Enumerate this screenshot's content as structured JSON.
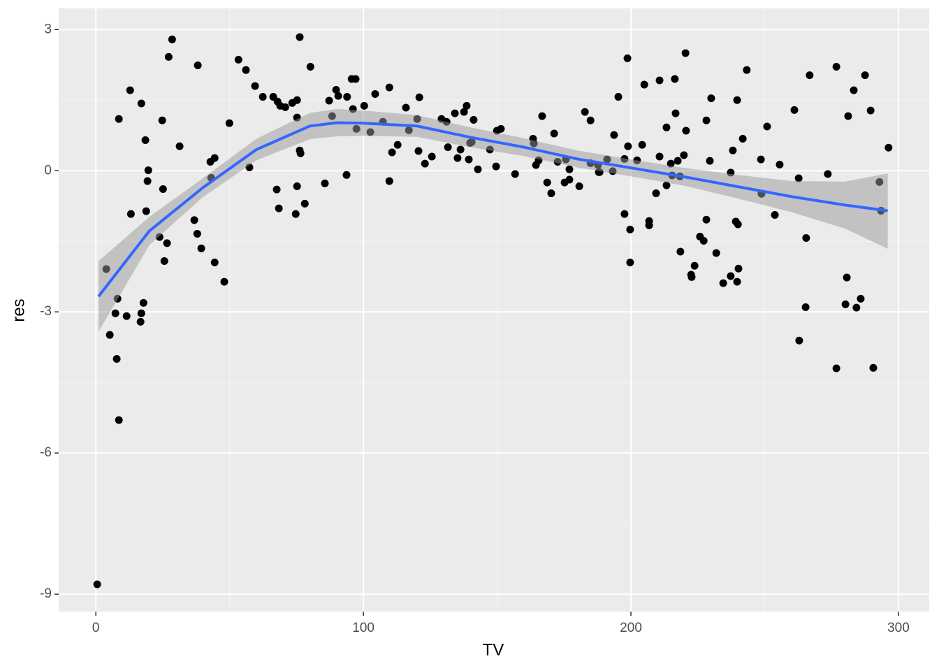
{
  "chart_data": {
    "type": "scatter",
    "x_label": "TV",
    "y_label": "res",
    "xlim": [
      -13.9,
      311.5
    ],
    "ylim": [
      -9.37,
      3.45
    ],
    "xticks": [
      0,
      100,
      200,
      300
    ],
    "yticks": [
      3,
      0,
      -3,
      -6,
      -9
    ],
    "xminor": [
      50,
      150,
      250
    ],
    "yminor": [
      1.5,
      -1.5,
      -4.5,
      -7.5
    ],
    "grid": true,
    "color": "#000000",
    "x": [
      0.5,
      3.9,
      5.2,
      7.3,
      7.8,
      8.1,
      8.6,
      8.6,
      11.5,
      12.8,
      13.1,
      16.7,
      17.0,
      17.0,
      17.8,
      18.5,
      18.8,
      19.3,
      19.6,
      23.8,
      24.8,
      25.1,
      25.6,
      26.6,
      27.2,
      28.5,
      31.3,
      36.8,
      37.9,
      38.1,
      39.4,
      42.8,
      43.1,
      44.4,
      44.4,
      48.0,
      49.9,
      53.3,
      56.1,
      57.4,
      59.5,
      62.4,
      66.3,
      67.6,
      67.9,
      68.4,
      68.9,
      70.8,
      73.4,
      74.7,
      75.2,
      75.2,
      75.2,
      76.2,
      76.2,
      76.5,
      78.1,
      80.2,
      85.6,
      87.2,
      88.3,
      89.8,
      90.6,
      93.7,
      93.9,
      95.6,
      96.1,
      97.1,
      97.4,
      100.3,
      102.6,
      104.4,
      107.3,
      109.7,
      109.7,
      110.7,
      112.8,
      115.9,
      117.0,
      120.1,
      120.6,
      120.9,
      123.0,
      125.6,
      129.2,
      131.1,
      131.6,
      134.2,
      135.2,
      136.3,
      137.6,
      138.6,
      139.4,
      139.9,
      140.5,
      141.2,
      142.8,
      147.3,
      149.6,
      149.9,
      151.4,
      156.7,
      163.4,
      163.7,
      164.5,
      165.5,
      166.8,
      168.7,
      170.2,
      171.3,
      172.6,
      175.2,
      175.7,
      177.0,
      177.0,
      180.7,
      182.8,
      184.9,
      184.9,
      187.7,
      188.0,
      188.3,
      191.1,
      193.2,
      193.7,
      195.3,
      197.6,
      197.6,
      198.7,
      198.9,
      199.7,
      199.7,
      202.3,
      204.2,
      205.0,
      206.8,
      206.8,
      209.4,
      210.7,
      210.7,
      213.3,
      213.3,
      214.9,
      215.4,
      216.4,
      216.7,
      217.5,
      218.3,
      218.5,
      219.8,
      220.4,
      220.6,
      222.5,
      222.7,
      223.8,
      225.8,
      227.2,
      228.2,
      228.2,
      229.5,
      230.0,
      231.9,
      234.5,
      237.3,
      237.3,
      238.1,
      239.2,
      239.7,
      239.7,
      240.0,
      240.2,
      241.8,
      243.3,
      248.6,
      248.8,
      250.9,
      253.8,
      255.6,
      261.1,
      262.7,
      262.9,
      265.3,
      265.5,
      266.8,
      273.6,
      276.8,
      276.8,
      280.2,
      280.7,
      281.2,
      283.3,
      284.3,
      285.9,
      287.5,
      289.6,
      290.6,
      292.9,
      293.5,
      296.3
    ],
    "y": [
      -8.79,
      -2.09,
      -3.49,
      -3.03,
      -4.0,
      -2.72,
      -5.3,
      1.1,
      -3.09,
      1.71,
      -0.92,
      -3.21,
      -3.03,
      1.43,
      -2.81,
      0.65,
      -0.86,
      -0.22,
      0.01,
      -1.41,
      1.07,
      -0.39,
      -1.92,
      -1.54,
      2.42,
      2.79,
      0.52,
      -1.05,
      -1.34,
      2.24,
      -1.65,
      0.19,
      -0.15,
      0.27,
      -1.95,
      -2.36,
      1.01,
      2.36,
      2.14,
      0.07,
      1.8,
      1.57,
      1.57,
      -0.4,
      1.47,
      -0.8,
      1.38,
      1.35,
      1.44,
      -0.92,
      1.13,
      1.5,
      -0.33,
      2.84,
      0.43,
      0.37,
      -0.7,
      2.21,
      -0.27,
      1.49,
      1.16,
      1.72,
      1.59,
      -0.09,
      1.57,
      1.95,
      1.31,
      1.95,
      0.89,
      1.38,
      0.82,
      1.63,
      1.04,
      1.77,
      -0.22,
      0.39,
      0.55,
      1.34,
      0.86,
      1.1,
      0.42,
      1.56,
      0.15,
      0.3,
      1.1,
      1.04,
      0.5,
      1.22,
      0.27,
      0.45,
      1.25,
      1.38,
      0.24,
      0.59,
      0.61,
      1.08,
      0.03,
      0.45,
      0.09,
      0.85,
      0.89,
      -0.07,
      0.68,
      0.58,
      0.12,
      0.22,
      1.16,
      -0.25,
      -0.48,
      0.79,
      0.19,
      -0.25,
      0.24,
      0.03,
      -0.19,
      -0.33,
      1.25,
      1.07,
      0.16,
      0.12,
      -0.03,
      -0.03,
      0.24,
      -0.01,
      0.76,
      1.57,
      -0.92,
      0.25,
      2.39,
      0.52,
      -1.25,
      -1.95,
      0.22,
      0.55,
      1.83,
      -1.07,
      -1.16,
      -0.48,
      1.92,
      0.3,
      0.92,
      -0.31,
      0.15,
      -0.1,
      1.95,
      1.22,
      0.21,
      -0.12,
      -1.72,
      0.33,
      2.5,
      0.85,
      -2.21,
      -2.26,
      -2.02,
      -1.4,
      -1.49,
      -1.04,
      1.07,
      0.21,
      1.54,
      -1.75,
      -2.39,
      -2.24,
      -0.04,
      0.43,
      -1.08,
      1.5,
      -2.36,
      -1.14,
      -2.08,
      0.68,
      2.14,
      0.24,
      -0.49,
      0.94,
      -0.94,
      0.13,
      1.29,
      -0.16,
      -3.61,
      -2.9,
      -1.43,
      2.03,
      -0.07,
      -4.2,
      2.21,
      -2.84,
      -2.27,
      1.16,
      1.71,
      -2.91,
      -2.72,
      2.03,
      1.28,
      -4.19,
      -0.24,
      -0.85,
      0.49
    ],
    "smooth": {
      "color": "#3366ff",
      "fill": "#999999",
      "x": [
        1,
        20,
        40,
        60,
        80,
        90,
        100,
        120,
        140,
        160,
        180,
        200,
        220,
        240,
        260,
        280,
        296
      ],
      "y": [
        -2.67,
        -1.28,
        -0.36,
        0.45,
        0.95,
        1.02,
        1.01,
        0.95,
        0.71,
        0.5,
        0.25,
        0.06,
        -0.13,
        -0.34,
        -0.55,
        -0.73,
        -0.85
      ],
      "lower": [
        -3.42,
        -1.58,
        -0.56,
        0.22,
        0.67,
        0.73,
        0.74,
        0.72,
        0.5,
        0.31,
        0.07,
        -0.12,
        -0.32,
        -0.59,
        -0.88,
        -1.23,
        -1.66
      ],
      "upper": [
        -1.92,
        -0.98,
        -0.16,
        0.68,
        1.23,
        1.31,
        1.28,
        1.18,
        0.92,
        0.69,
        0.43,
        0.24,
        0.06,
        -0.09,
        -0.22,
        -0.23,
        -0.06
      ]
    }
  }
}
